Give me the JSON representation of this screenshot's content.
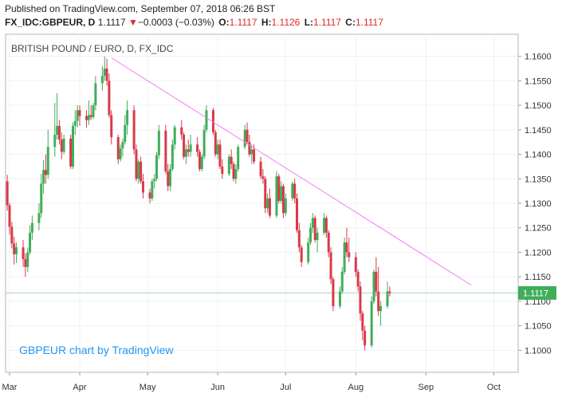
{
  "header": {
    "published": "Published on TradingView.com, September 07, 2018 06:26 BST",
    "symbol": "FX_IDC:GBPEUR, D",
    "last": "1.1117",
    "change_arrow": "▼",
    "change": "−0.0003 (−0.03%)",
    "o_label": "O:",
    "o_value": "1.1117",
    "h_label": "H:",
    "h_value": "1.1126",
    "l_label": "L:",
    "l_value": "1.1117",
    "c_label": "C:",
    "c_value": "1.1117"
  },
  "colors": {
    "up": "#3fae5a",
    "down": "#d9394a",
    "trend": "#f07cf0",
    "price_tag": "#3fae5a",
    "watermark": "#2196f3",
    "grid": "#f1f1f1"
  },
  "chart_data": {
    "type": "candlestick",
    "title": "BRITISH POUND / EURO, D, FX_IDC",
    "watermark": "GBPEUR chart by TradingView",
    "ylim": [
      1.0955,
      1.1645
    ],
    "y_ticks": [
      "1.1600",
      "1.1550",
      "1.1500",
      "1.1450",
      "1.1400",
      "1.1350",
      "1.1300",
      "1.1250",
      "1.1200",
      "1.1150",
      "1.1100",
      "1.1050",
      "1.1000"
    ],
    "x_ticks": [
      {
        "label": "Mar",
        "day": 0
      },
      {
        "label": "Apr",
        "day": 31
      },
      {
        "label": "May",
        "day": 61
      },
      {
        "label": "Jun",
        "day": 92
      },
      {
        "label": "Jul",
        "day": 122
      },
      {
        "label": "Aug",
        "day": 153
      },
      {
        "label": "Sep",
        "day": 184
      },
      {
        "label": "Oct",
        "day": 214
      }
    ],
    "x_range": [
      0,
      223
    ],
    "current_price": "1.1117",
    "trendline": [
      {
        "day": 45,
        "price": 1.1597
      },
      {
        "day": 204,
        "price": 1.1133
      }
    ],
    "series": [
      {
        "name": "GBPEUR",
        "ohlc": [
          [
            -3,
            1.132,
            1.136,
            1.13,
            1.1345
          ],
          [
            -1,
            1.1345,
            1.1358,
            1.1285,
            1.1296
          ],
          [
            0,
            1.1296,
            1.13,
            1.1236,
            1.1252
          ],
          [
            1,
            1.1252,
            1.1262,
            1.1208,
            1.1218
          ],
          [
            2,
            1.1218,
            1.1232,
            1.1175,
            1.1196
          ],
          [
            3,
            1.1196,
            1.122,
            1.1178,
            1.121
          ],
          [
            6,
            1.121,
            1.1225,
            1.117,
            1.1186
          ],
          [
            7,
            1.1186,
            1.1198,
            1.115,
            1.117
          ],
          [
            8,
            1.117,
            1.121,
            1.116,
            1.12
          ],
          [
            9,
            1.12,
            1.1255,
            1.1195,
            1.124
          ],
          [
            10,
            1.124,
            1.1275,
            1.1225,
            1.126
          ],
          [
            13,
            1.126,
            1.13,
            1.1245,
            1.128
          ],
          [
            14,
            1.128,
            1.136,
            1.127,
            1.134
          ],
          [
            15,
            1.134,
            1.1388,
            1.132,
            1.1368
          ],
          [
            16,
            1.1368,
            1.14,
            1.134,
            1.1358
          ],
          [
            17,
            1.1358,
            1.145,
            1.135,
            1.1415
          ],
          [
            20,
            1.1415,
            1.1505,
            1.1395,
            1.144
          ],
          [
            21,
            1.144,
            1.1525,
            1.143,
            1.1458
          ],
          [
            22,
            1.1458,
            1.147,
            1.142,
            1.143
          ],
          [
            23,
            1.143,
            1.1445,
            1.139,
            1.1405
          ],
          [
            24,
            1.1405,
            1.144,
            1.14,
            1.1432
          ],
          [
            27,
            1.1432,
            1.144,
            1.137,
            1.1375
          ],
          [
            28,
            1.1375,
            1.1465,
            1.137,
            1.1458
          ],
          [
            29,
            1.1458,
            1.149,
            1.144,
            1.1468
          ],
          [
            30,
            1.1468,
            1.15,
            1.1455,
            1.149
          ],
          [
            31,
            1.149,
            1.15,
            1.1458,
            1.1478
          ],
          [
            34,
            1.1478,
            1.149,
            1.1455,
            1.147
          ],
          [
            35,
            1.147,
            1.151,
            1.146,
            1.148
          ],
          [
            36,
            1.148,
            1.15,
            1.147,
            1.1476
          ],
          [
            37,
            1.1476,
            1.1505,
            1.1472,
            1.15
          ],
          [
            38,
            1.15,
            1.156,
            1.149,
            1.1545
          ],
          [
            41,
            1.1545,
            1.158,
            1.153,
            1.156
          ],
          [
            42,
            1.156,
            1.16,
            1.155,
            1.1575
          ],
          [
            43,
            1.1575,
            1.1595,
            1.154,
            1.155
          ],
          [
            44,
            1.155,
            1.1565,
            1.1475,
            1.148
          ],
          [
            45,
            1.148,
            1.149,
            1.142,
            1.1435
          ],
          [
            48,
            1.1435,
            1.144,
            1.138,
            1.139
          ],
          [
            49,
            1.139,
            1.142,
            1.1385,
            1.1412
          ],
          [
            50,
            1.1412,
            1.1432,
            1.1395,
            1.1425
          ],
          [
            51,
            1.1425,
            1.148,
            1.142,
            1.146
          ],
          [
            52,
            1.146,
            1.151,
            1.144,
            1.149
          ],
          [
            55,
            1.149,
            1.15,
            1.14,
            1.141
          ],
          [
            56,
            1.141,
            1.142,
            1.1345,
            1.135
          ],
          [
            57,
            1.135,
            1.139,
            1.134,
            1.1385
          ],
          [
            58,
            1.1385,
            1.1395,
            1.134,
            1.1345
          ],
          [
            59,
            1.1345,
            1.136,
            1.131,
            1.1322
          ],
          [
            62,
            1.1322,
            1.133,
            1.13,
            1.131
          ],
          [
            63,
            1.131,
            1.135,
            1.1305,
            1.1345
          ],
          [
            64,
            1.1345,
            1.136,
            1.133,
            1.135
          ],
          [
            65,
            1.135,
            1.1405,
            1.1345,
            1.1398
          ],
          [
            66,
            1.1398,
            1.146,
            1.139,
            1.1448
          ],
          [
            69,
            1.1448,
            1.146,
            1.136,
            1.1365
          ],
          [
            70,
            1.1365,
            1.138,
            1.1325,
            1.1335
          ],
          [
            71,
            1.1335,
            1.138,
            1.1325,
            1.137
          ],
          [
            72,
            1.137,
            1.143,
            1.1365,
            1.142
          ],
          [
            73,
            1.142,
            1.146,
            1.141,
            1.1455
          ],
          [
            76,
            1.1455,
            1.147,
            1.143,
            1.144
          ],
          [
            77,
            1.144,
            1.1445,
            1.139,
            1.1395
          ],
          [
            78,
            1.1395,
            1.142,
            1.138,
            1.141
          ],
          [
            79,
            1.141,
            1.143,
            1.1395,
            1.1405
          ],
          [
            80,
            1.1405,
            1.144,
            1.1395,
            1.142
          ],
          [
            83,
            1.142,
            1.1435,
            1.1395,
            1.1405
          ],
          [
            84,
            1.1405,
            1.141,
            1.1365,
            1.137
          ],
          [
            85,
            1.137,
            1.14,
            1.1365,
            1.1395
          ],
          [
            86,
            1.1395,
            1.146,
            1.139,
            1.145
          ],
          [
            87,
            1.145,
            1.15,
            1.1445,
            1.149
          ],
          [
            90,
            1.149,
            1.1495,
            1.144,
            1.1445
          ],
          [
            91,
            1.1445,
            1.145,
            1.1395,
            1.14
          ],
          [
            92,
            1.14,
            1.143,
            1.139,
            1.142
          ],
          [
            93,
            1.142,
            1.143,
            1.137,
            1.1375
          ],
          [
            94,
            1.1375,
            1.139,
            1.135,
            1.136
          ],
          [
            97,
            1.136,
            1.14,
            1.1355,
            1.1395
          ],
          [
            98,
            1.1395,
            1.141,
            1.137,
            1.138
          ],
          [
            99,
            1.138,
            1.1385,
            1.1345,
            1.135
          ],
          [
            100,
            1.135,
            1.138,
            1.134,
            1.137
          ],
          [
            101,
            1.137,
            1.142,
            1.1365,
            1.1415
          ],
          [
            104,
            1.1415,
            1.146,
            1.141,
            1.145
          ],
          [
            105,
            1.145,
            1.1465,
            1.142,
            1.1425
          ],
          [
            106,
            1.1425,
            1.144,
            1.1395,
            1.14
          ],
          [
            107,
            1.14,
            1.142,
            1.138,
            1.141
          ],
          [
            108,
            1.141,
            1.142,
            1.138,
            1.1385
          ],
          [
            111,
            1.1385,
            1.1395,
            1.135,
            1.1355
          ],
          [
            112,
            1.1355,
            1.137,
            1.134,
            1.135
          ],
          [
            113,
            1.135,
            1.1355,
            1.128,
            1.129
          ],
          [
            114,
            1.129,
            1.132,
            1.128,
            1.131
          ],
          [
            115,
            1.131,
            1.133,
            1.127,
            1.1275
          ],
          [
            118,
            1.1275,
            1.1365,
            1.127,
            1.1355
          ],
          [
            119,
            1.1355,
            1.136,
            1.13,
            1.1305
          ],
          [
            120,
            1.1305,
            1.1345,
            1.13,
            1.1335
          ],
          [
            121,
            1.1335,
            1.134,
            1.127,
            1.128
          ],
          [
            122,
            1.128,
            1.132,
            1.1275,
            1.131
          ],
          [
            125,
            1.131,
            1.1345,
            1.1305,
            1.134
          ],
          [
            126,
            1.134,
            1.135,
            1.13,
            1.131
          ],
          [
            127,
            1.131,
            1.132,
            1.124,
            1.1245
          ],
          [
            128,
            1.1245,
            1.126,
            1.12,
            1.121
          ],
          [
            129,
            1.121,
            1.1215,
            1.117,
            1.118
          ],
          [
            132,
            1.118,
            1.123,
            1.1175,
            1.122
          ],
          [
            133,
            1.122,
            1.126,
            1.1215,
            1.125
          ],
          [
            134,
            1.125,
            1.128,
            1.124,
            1.127
          ],
          [
            135,
            1.127,
            1.1275,
            1.122,
            1.1225
          ],
          [
            136,
            1.1225,
            1.125,
            1.12,
            1.124
          ],
          [
            139,
            1.124,
            1.128,
            1.1235,
            1.127
          ],
          [
            140,
            1.127,
            1.1275,
            1.123,
            1.124
          ],
          [
            141,
            1.124,
            1.1245,
            1.119,
            1.12
          ],
          [
            142,
            1.12,
            1.121,
            1.1135,
            1.1145
          ],
          [
            143,
            1.1145,
            1.115,
            1.108,
            1.109
          ],
          [
            146,
            1.109,
            1.113,
            1.1085,
            1.112
          ],
          [
            147,
            1.112,
            1.117,
            1.1115,
            1.116
          ],
          [
            148,
            1.116,
            1.123,
            1.1155,
            1.122
          ],
          [
            149,
            1.122,
            1.125,
            1.119,
            1.12
          ],
          [
            150,
            1.12,
            1.123,
            1.118,
            1.119
          ],
          [
            153,
            1.119,
            1.12,
            1.115,
            1.116
          ],
          [
            154,
            1.116,
            1.1165,
            1.112,
            1.113
          ],
          [
            155,
            1.113,
            1.114,
            1.106,
            1.1075
          ],
          [
            156,
            1.1075,
            1.108,
            1.102,
            1.104
          ],
          [
            157,
            1.104,
            1.105,
            1.1,
            1.101
          ],
          [
            160,
            1.101,
            1.111,
            1.1005,
            1.11
          ],
          [
            161,
            1.11,
            1.1165,
            1.1095,
            1.116
          ],
          [
            162,
            1.116,
            1.119,
            1.111,
            1.112
          ],
          [
            163,
            1.112,
            1.117,
            1.107,
            1.108
          ],
          [
            164,
            1.108,
            1.11,
            1.105,
            1.109
          ],
          [
            167,
            1.109,
            1.114,
            1.1085,
            1.112
          ],
          [
            168,
            1.112,
            1.113,
            1.111,
            1.1117
          ]
        ]
      }
    ]
  }
}
